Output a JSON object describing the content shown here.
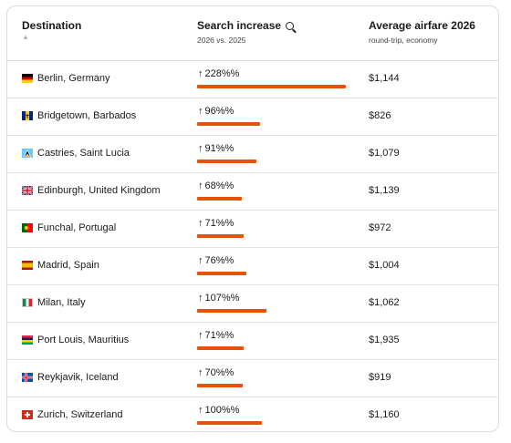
{
  "header": {
    "destination": "Destination",
    "search_increase": "Search increase",
    "search_sub": "2026 vs. 2025",
    "airfare": "Average airfare 2026",
    "airfare_sub": "round-trip, economy"
  },
  "colors": {
    "bar": "#e35205",
    "border": "#dcdcdc"
  },
  "rows": [
    {
      "destination": "Berlin, Germany",
      "increase": "228%%",
      "increase_value": 228,
      "airfare": "$1,144",
      "flag": "germany"
    },
    {
      "destination": "Bridgetown, Barbados",
      "increase": "96%%",
      "increase_value": 96,
      "airfare": "$826",
      "flag": "barbados"
    },
    {
      "destination": "Castries, Saint Lucia",
      "increase": "91%%",
      "increase_value": 91,
      "airfare": "$1,079",
      "flag": "saint-lucia"
    },
    {
      "destination": "Edinburgh, United Kingdom",
      "increase": "68%%",
      "increase_value": 68,
      "airfare": "$1,139",
      "flag": "united-kingdom"
    },
    {
      "destination": "Funchal, Portugal",
      "increase": "71%%",
      "increase_value": 71,
      "airfare": "$972",
      "flag": "portugal"
    },
    {
      "destination": "Madrid, Spain",
      "increase": "76%%",
      "increase_value": 76,
      "airfare": "$1,004",
      "flag": "spain"
    },
    {
      "destination": "Milan, Italy",
      "increase": "107%%",
      "increase_value": 107,
      "airfare": "$1,062",
      "flag": "italy"
    },
    {
      "destination": "Port Louis, Mauritius",
      "increase": "71%%",
      "increase_value": 71,
      "airfare": "$1,935",
      "flag": "mauritius"
    },
    {
      "destination": "Reykjavik, Iceland",
      "increase": "70%%",
      "increase_value": 70,
      "airfare": "$919",
      "flag": "iceland"
    },
    {
      "destination": "Zurich, Switzerland",
      "increase": "100%%",
      "increase_value": 100,
      "airfare": "$1,160",
      "flag": "switzerland"
    }
  ]
}
